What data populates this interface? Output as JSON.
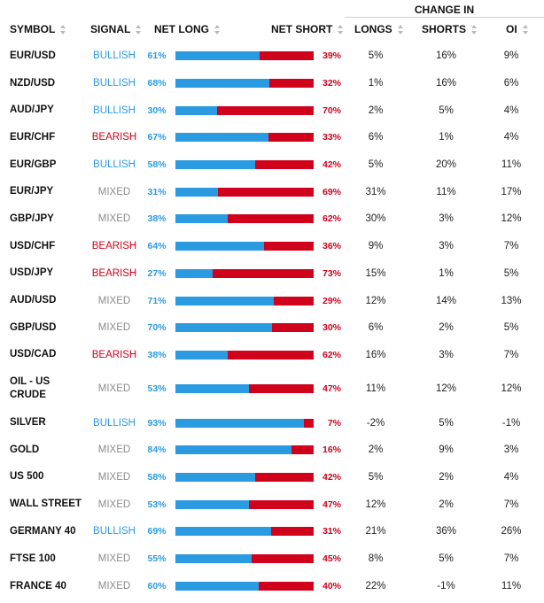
{
  "colors": {
    "bullish": "#2a9be0",
    "bearish": "#d0021b",
    "mixed": "#8c8c8c",
    "long_bar": "#2a9be0",
    "short_bar": "#d0021b"
  },
  "header": {
    "change_in": "CHANGE IN",
    "symbol": "SYMBOL",
    "signal": "SIGNAL",
    "net_long": "NET LONG",
    "net_short": "NET SHORT",
    "longs": "LONGS",
    "shorts": "SHORTS",
    "oi": "OI"
  },
  "rows": [
    {
      "symbol": "EUR/USD",
      "signal": "BULLISH",
      "net_long": "61%",
      "net_short": "39%",
      "long_pct": 61,
      "longs": "5%",
      "shorts": "16%",
      "oi": "9%"
    },
    {
      "symbol": "NZD/USD",
      "signal": "BULLISH",
      "net_long": "68%",
      "net_short": "32%",
      "long_pct": 68,
      "longs": "1%",
      "shorts": "16%",
      "oi": "6%"
    },
    {
      "symbol": "AUD/JPY",
      "signal": "BULLISH",
      "net_long": "30%",
      "net_short": "70%",
      "long_pct": 30,
      "longs": "2%",
      "shorts": "5%",
      "oi": "4%"
    },
    {
      "symbol": "EUR/CHF",
      "signal": "BEARISH",
      "net_long": "67%",
      "net_short": "33%",
      "long_pct": 67,
      "longs": "6%",
      "shorts": "1%",
      "oi": "4%"
    },
    {
      "symbol": "EUR/GBP",
      "signal": "BULLISH",
      "net_long": "58%",
      "net_short": "42%",
      "long_pct": 58,
      "longs": "5%",
      "shorts": "20%",
      "oi": "11%"
    },
    {
      "symbol": "EUR/JPY",
      "signal": "MIXED",
      "net_long": "31%",
      "net_short": "69%",
      "long_pct": 31,
      "longs": "31%",
      "shorts": "11%",
      "oi": "17%"
    },
    {
      "symbol": "GBP/JPY",
      "signal": "MIXED",
      "net_long": "38%",
      "net_short": "62%",
      "long_pct": 38,
      "longs": "30%",
      "shorts": "3%",
      "oi": "12%"
    },
    {
      "symbol": "USD/CHF",
      "signal": "BEARISH",
      "net_long": "64%",
      "net_short": "36%",
      "long_pct": 64,
      "longs": "9%",
      "shorts": "3%",
      "oi": "7%"
    },
    {
      "symbol": "USD/JPY",
      "signal": "BEARISH",
      "net_long": "27%",
      "net_short": "73%",
      "long_pct": 27,
      "longs": "15%",
      "shorts": "1%",
      "oi": "5%"
    },
    {
      "symbol": "AUD/USD",
      "signal": "MIXED",
      "net_long": "71%",
      "net_short": "29%",
      "long_pct": 71,
      "longs": "12%",
      "shorts": "14%",
      "oi": "13%"
    },
    {
      "symbol": "GBP/USD",
      "signal": "MIXED",
      "net_long": "70%",
      "net_short": "30%",
      "long_pct": 70,
      "longs": "6%",
      "shorts": "2%",
      "oi": "5%"
    },
    {
      "symbol": "USD/CAD",
      "signal": "BEARISH",
      "net_long": "38%",
      "net_short": "62%",
      "long_pct": 38,
      "longs": "16%",
      "shorts": "3%",
      "oi": "7%"
    },
    {
      "symbol": "OIL - US CRUDE",
      "signal": "MIXED",
      "net_long": "53%",
      "net_short": "47%",
      "long_pct": 53,
      "longs": "11%",
      "shorts": "12%",
      "oi": "12%"
    },
    {
      "symbol": "SILVER",
      "signal": "BULLISH",
      "net_long": "93%",
      "net_short": "7%",
      "long_pct": 93,
      "longs": "-2%",
      "shorts": "5%",
      "oi": "-1%"
    },
    {
      "symbol": "GOLD",
      "signal": "MIXED",
      "net_long": "84%",
      "net_short": "16%",
      "long_pct": 84,
      "longs": "2%",
      "shorts": "9%",
      "oi": "3%"
    },
    {
      "symbol": "US 500",
      "signal": "MIXED",
      "net_long": "58%",
      "net_short": "42%",
      "long_pct": 58,
      "longs": "5%",
      "shorts": "2%",
      "oi": "4%"
    },
    {
      "symbol": "WALL STREET",
      "signal": "MIXED",
      "net_long": "53%",
      "net_short": "47%",
      "long_pct": 53,
      "longs": "12%",
      "shorts": "2%",
      "oi": "7%"
    },
    {
      "symbol": "GERMANY 40",
      "signal": "BULLISH",
      "net_long": "69%",
      "net_short": "31%",
      "long_pct": 69,
      "longs": "21%",
      "shorts": "36%",
      "oi": "26%"
    },
    {
      "symbol": "FTSE 100",
      "signal": "MIXED",
      "net_long": "55%",
      "net_short": "45%",
      "long_pct": 55,
      "longs": "8%",
      "shorts": "5%",
      "oi": "7%"
    },
    {
      "symbol": "FRANCE 40",
      "signal": "MIXED",
      "net_long": "60%",
      "net_short": "40%",
      "long_pct": 60,
      "longs": "22%",
      "shorts": "-1%",
      "oi": "11%"
    }
  ]
}
